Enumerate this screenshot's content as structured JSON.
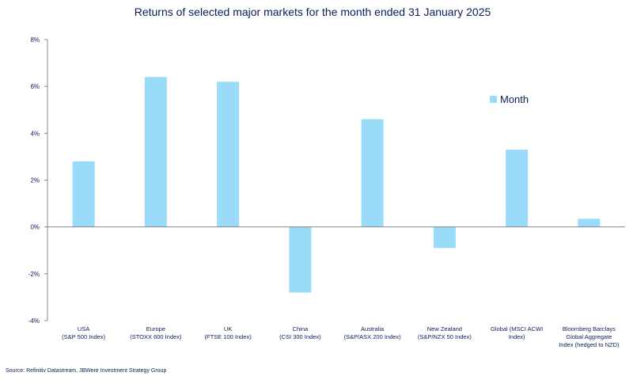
{
  "chart_data": {
    "type": "bar",
    "title": "Returns of selected major markets for the month ended 31 January 2025",
    "xlabel": "",
    "ylabel": "",
    "ylim": [
      -4,
      8
    ],
    "yticks": [
      -4,
      -2,
      0,
      2,
      4,
      6,
      8
    ],
    "ytick_labels": [
      "-4%",
      "-2%",
      "0%",
      "2%",
      "4%",
      "6%",
      "8%"
    ],
    "grid": false,
    "legend_position": "top-right",
    "categories": [
      [
        "USA",
        "(S&P 500 Index)"
      ],
      [
        "Europe",
        "(STOXX 600 Index)"
      ],
      [
        "UK",
        "(FTSE 100 Index)"
      ],
      [
        "China",
        "(CSI 300 Index)"
      ],
      [
        "Australia",
        "(S&P/ASX 200 Index)"
      ],
      [
        "New Zealand",
        "(S&P/NZX 50 Index)"
      ],
      [
        "Global (MSCI ACWI",
        "Index)"
      ],
      [
        "Bloomberg Barclays",
        "Global Aggregate",
        "Index (hedged to NZD)"
      ]
    ],
    "series": [
      {
        "name": "Month",
        "color": "#99dbf8",
        "values": [
          2.8,
          6.4,
          6.2,
          -2.8,
          4.6,
          -0.9,
          3.3,
          0.35
        ]
      }
    ],
    "source": "Source: Refinitiv Datastream, JBWere Investment Strategy Group"
  }
}
